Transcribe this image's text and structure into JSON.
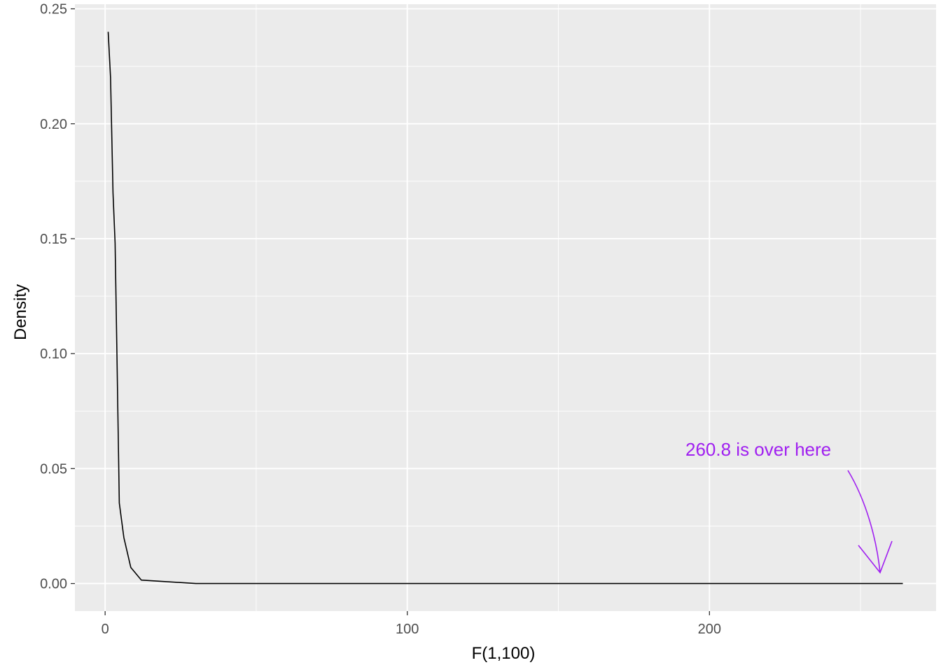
{
  "chart_data": {
    "type": "line",
    "title": "",
    "xlabel": "F(1,100)",
    "ylabel": "Density",
    "xlim": [
      -10,
      275
    ],
    "ylim": [
      -0.012,
      0.252
    ],
    "x_ticks": [
      0,
      100,
      200
    ],
    "x_tick_labels": [
      "0",
      "100",
      "200"
    ],
    "x_minor_grid": [
      50,
      150,
      250
    ],
    "y_ticks": [
      0.0,
      0.05,
      0.1,
      0.15,
      0.2,
      0.25
    ],
    "y_tick_labels": [
      "0.00",
      "0.05",
      "0.10",
      "0.15",
      "0.20",
      "0.25"
    ],
    "y_minor_grid": [
      0.025,
      0.075,
      0.125,
      0.175,
      0.225
    ],
    "grid": true,
    "legend": "none",
    "series": [
      {
        "color": "#000000",
        "x": [
          1.0,
          1.8,
          2.6,
          3.3,
          3.9,
          4.7,
          6.2,
          8.5,
          12,
          30,
          60,
          100,
          150,
          200,
          250,
          264
        ],
        "y": [
          0.24,
          0.22,
          0.17,
          0.148,
          0.1,
          0.035,
          0.02,
          0.007,
          0.0015,
          0.0,
          0.0,
          0.0,
          0.0,
          0.0,
          0.0,
          0.0
        ]
      }
    ],
    "annotations": [
      {
        "text": "260.8 is over here",
        "color": "#a020f0",
        "target_x": 260.8,
        "target_y": 0.0
      }
    ]
  }
}
